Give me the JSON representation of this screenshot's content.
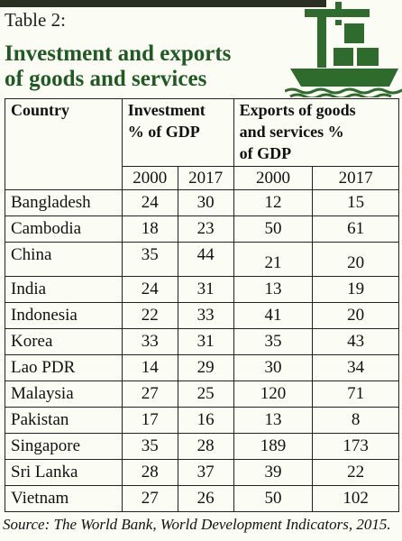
{
  "header": {
    "table_label": "Table 2:",
    "title_line1": "Investment and exports",
    "title_line2": "of goods and services",
    "icon": "cargo-ship-icon",
    "accent_color": "#1f5a23",
    "icon_color": "#2f6b2c"
  },
  "table": {
    "col_country": "Country",
    "col_investment_line1": "Investment",
    "col_investment_line2": "% of GDP",
    "col_exports_line1": "Exports of goods",
    "col_exports_line2": "and services %",
    "col_exports_line3": "of GDP",
    "years": [
      "2000",
      "2017",
      "2000",
      "2017"
    ],
    "rows": [
      {
        "country": "Bangladesh",
        "inv2000": "24",
        "inv2017": "30",
        "exp2000": "12",
        "exp2017": "15"
      },
      {
        "country": "Cambodia",
        "inv2000": "18",
        "inv2017": "23",
        "exp2000": "50",
        "exp2017": "61"
      },
      {
        "country": "China",
        "inv2000": "35",
        "inv2017": "44",
        "exp2000": "21",
        "exp2017": "20"
      },
      {
        "country": "India",
        "inv2000": "24",
        "inv2017": "31",
        "exp2000": "13",
        "exp2017": "19"
      },
      {
        "country": "Indonesia",
        "inv2000": "22",
        "inv2017": "33",
        "exp2000": "41",
        "exp2017": "20"
      },
      {
        "country": "Korea",
        "inv2000": "33",
        "inv2017": "31",
        "exp2000": "35",
        "exp2017": "43"
      },
      {
        "country": "Lao PDR",
        "inv2000": "14",
        "inv2017": "29",
        "exp2000": "30",
        "exp2017": "34"
      },
      {
        "country": "Malaysia",
        "inv2000": "27",
        "inv2017": "25",
        "exp2000": "120",
        "exp2017": "71"
      },
      {
        "country": "Pakistan",
        "inv2000": "17",
        "inv2017": "16",
        "exp2000": "13",
        "exp2017": "8"
      },
      {
        "country": "Singapore",
        "inv2000": "35",
        "inv2017": "28",
        "exp2000": "189",
        "exp2017": "173"
      },
      {
        "country": "Sri Lanka",
        "inv2000": "28",
        "inv2017": "37",
        "exp2000": "39",
        "exp2017": "22"
      },
      {
        "country": "Vietnam",
        "inv2000": "27",
        "inv2017": "26",
        "exp2000": "50",
        "exp2017": "102"
      }
    ]
  },
  "source": "Source: The World Bank, World Development Indicators, 2015."
}
